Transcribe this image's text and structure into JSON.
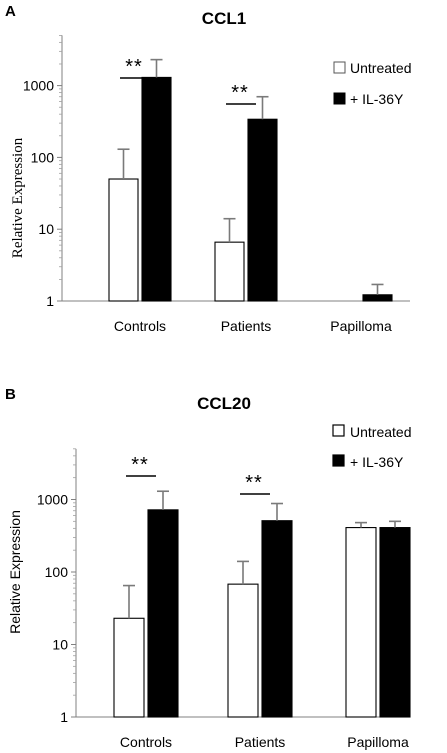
{
  "chart_data": [
    {
      "panel": "A",
      "type": "bar",
      "title": "CCL1",
      "ylabel": "Relative Expression",
      "xlabel": "",
      "yscale": "log",
      "ylim": [
        1,
        5000
      ],
      "yticks": [
        "1",
        "10",
        "100",
        "1000"
      ],
      "categories": [
        "Controls",
        "Patients",
        "Papilloma"
      ],
      "series": [
        {
          "name": "Untreated",
          "fill": "#ffffff",
          "values": [
            50,
            6.6,
            null
          ],
          "err_upper": [
            130,
            14,
            null
          ]
        },
        {
          "name": "+ IL-36Y",
          "fill": "#000000",
          "values": [
            1300,
            340,
            1.22
          ],
          "err_upper": [
            2300,
            700,
            1.7
          ]
        }
      ],
      "significance": [
        {
          "category": "Controls",
          "label": "**"
        },
        {
          "category": "Patients",
          "label": "**"
        }
      ],
      "legend": "top-right",
      "grid": false
    },
    {
      "panel": "B",
      "type": "bar",
      "title": "CCL20",
      "ylabel": "Relative Expression",
      "xlabel": "",
      "yscale": "log",
      "ylim": [
        1,
        5000
      ],
      "yticks": [
        "1",
        "10",
        "100",
        "1000"
      ],
      "categories": [
        "Controls",
        "Patients",
        "Papilloma"
      ],
      "series": [
        {
          "name": "Untreated",
          "fill": "#ffffff",
          "values": [
            23,
            68,
            410
          ],
          "err_upper": [
            65,
            140,
            480
          ]
        },
        {
          "name": "+ IL-36Y",
          "fill": "#000000",
          "values": [
            720,
            510,
            410
          ],
          "err_upper": [
            1300,
            880,
            500
          ]
        }
      ],
      "significance": [
        {
          "category": "Controls",
          "label": "**"
        },
        {
          "category": "Patients",
          "label": "**"
        }
      ],
      "legend": "top-right",
      "grid": false
    }
  ]
}
